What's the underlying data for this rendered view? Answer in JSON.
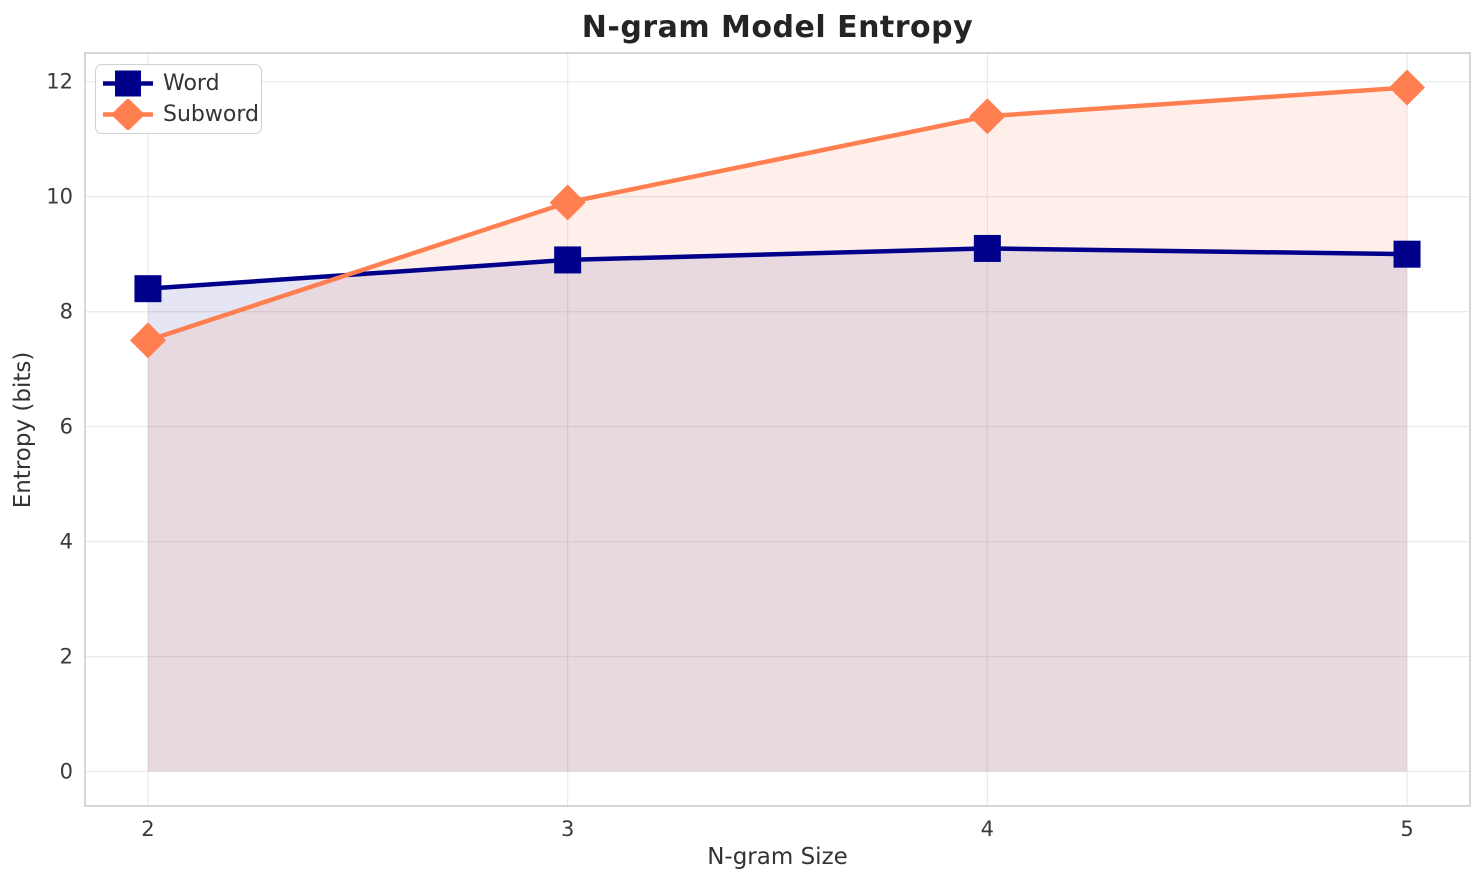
{
  "chart_data": {
    "type": "line",
    "title": "N-gram Model Entropy",
    "xlabel": "N-gram Size",
    "ylabel": "Entropy (bits)",
    "x": [
      2,
      3,
      4,
      5
    ],
    "series": [
      {
        "name": "Word",
        "values": [
          8.4,
          8.9,
          9.1,
          9.0
        ],
        "color": "#00008B",
        "marker": "square",
        "fill_opacity": 0.1
      },
      {
        "name": "Subword",
        "values": [
          7.5,
          9.9,
          11.4,
          11.9
        ],
        "color": "#FF7F50",
        "marker": "diamond",
        "fill_opacity": 0.12
      }
    ],
    "fill_baseline": 0,
    "xticks": [
      2,
      3,
      4,
      5
    ],
    "yticks": [
      0,
      2,
      4,
      6,
      8,
      10,
      12
    ],
    "xlim": [
      1.85,
      5.15
    ],
    "ylim": [
      -0.6,
      12.5
    ],
    "grid": true,
    "legend_position": "upper left",
    "colors": {
      "grid": "#ebebeb",
      "spine": "#cccccc",
      "tick_label": "#3a3a3a",
      "title": "#242424",
      "axis_label": "#333333",
      "background": "#ffffff"
    }
  }
}
